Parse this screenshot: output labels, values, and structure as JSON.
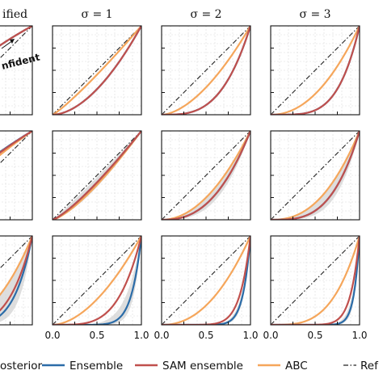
{
  "chart_data": {
    "type": "line",
    "description_rows": 3,
    "columns": [
      {
        "title": "ified"
      },
      {
        "title": "σ = 1"
      },
      {
        "title": "σ = 2"
      },
      {
        "title": "σ = 3"
      }
    ],
    "annotations": [
      "nfident"
    ],
    "x_ticks": [
      "0.0",
      "0.5",
      "1.0"
    ],
    "xlim": [
      0,
      1
    ],
    "ylim": [
      0,
      1
    ],
    "grid": true,
    "colors": {
      "ensemble": "#2b6ca8",
      "sam": "#c0504d",
      "abc": "#f5a65b",
      "posterior_band": "#d3d3d3",
      "reference": "#222222"
    },
    "legend": {
      "placement": "bottom",
      "entries": [
        {
          "key": "posterior",
          "label": "osterior"
        },
        {
          "key": "ensemble",
          "label": "Ensemble"
        },
        {
          "key": "sam",
          "label": "SAM ensemble"
        },
        {
          "key": "abc",
          "label": "ABC"
        },
        {
          "key": "reference",
          "label": "Ref"
        }
      ]
    },
    "panels": [
      [
        {
          "ensemble": 0.55,
          "sam": 0.55,
          "abc": 0.55,
          "band": 0.05
        },
        {
          "ensemble": 1.8,
          "sam": 1.8,
          "abc": 1.15,
          "band": 0.05
        },
        {
          "ensemble": 3.2,
          "sam": 3.2,
          "abc": 1.7,
          "band": 0.05
        },
        {
          "ensemble": 4.3,
          "sam": 4.3,
          "abc": 2.1,
          "band": 0.05
        }
      ],
      [
        {
          "ensemble": 0.6,
          "sam": 0.62,
          "abc": 0.7,
          "band": 0.08
        },
        {
          "ensemble": 1.25,
          "sam": 1.25,
          "abc": 1.35,
          "band": 0.15
        },
        {
          "ensemble": 2.5,
          "sam": 2.5,
          "abc": 2.0,
          "band": 0.2
        },
        {
          "ensemble": 3.3,
          "sam": 3.3,
          "abc": 2.4,
          "band": 0.25
        }
      ],
      [
        {
          "ensemble": 5.0,
          "sam": 4.0,
          "abc": 2.4,
          "band": 0.5
        },
        {
          "ensemble": 9.0,
          "sam": 4.0,
          "abc": 1.8,
          "band": 0.35
        },
        {
          "ensemble": 12.0,
          "sam": 8.5,
          "abc": 2.2,
          "band": 0.15
        },
        {
          "ensemble": 16.0,
          "sam": 10.0,
          "abc": 3.4,
          "band": 0.2
        }
      ]
    ]
  }
}
